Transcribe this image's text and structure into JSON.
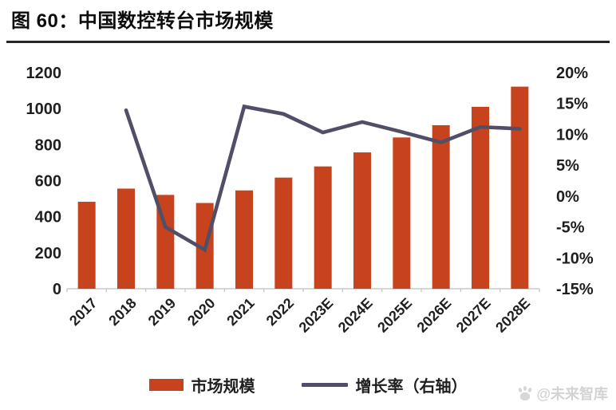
{
  "figure": {
    "title": "图 60：中国数控转台市场规模",
    "watermark": "@未来智库"
  },
  "chart_data": {
    "type": "bar",
    "subtype": "bar+line-dual-axis",
    "title": "图 60：中国数控转台市场规模",
    "categories": [
      "2017",
      "2018",
      "2019",
      "2020",
      "2021",
      "2022",
      "2023E",
      "2024E",
      "2025E",
      "2026E",
      "2027E",
      "2028E"
    ],
    "series": [
      {
        "name": "市场规模",
        "type": "bar",
        "axis": "left",
        "color": "#C6431E",
        "values": [
          483,
          556,
          521,
          476,
          546,
          617,
          679,
          757,
          840,
          908,
          1010,
          1122
        ]
      },
      {
        "name": "增长率（右轴）",
        "type": "line",
        "axis": "right",
        "color": "#514E67",
        "values": [
          null,
          13.9,
          -5.0,
          -8.7,
          14.5,
          13.3,
          10.3,
          12.0,
          10.4,
          8.7,
          11.2,
          10.9
        ]
      }
    ],
    "left_axis": {
      "min": 0,
      "max": 1200,
      "step": 200,
      "tick_labels": [
        "0",
        "200",
        "400",
        "600",
        "800",
        "1000",
        "1200"
      ]
    },
    "right_axis": {
      "min": -15,
      "max": 20,
      "step": 5,
      "tick_labels": [
        "-15%",
        "-10%",
        "-5%",
        "0%",
        "5%",
        "10%",
        "15%",
        "20%"
      ]
    },
    "grid": false,
    "legend_position": "bottom",
    "colors": {
      "bar": "#C6431E",
      "line": "#514E67",
      "axis_text": "#1F1F1F",
      "baseline": "#C9C9C9",
      "watermark": "#D3D3D3"
    }
  }
}
